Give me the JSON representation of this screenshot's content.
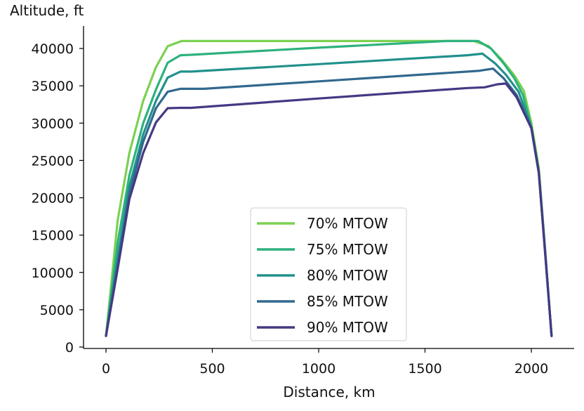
{
  "chart_data": {
    "type": "line",
    "xlabel": "Distance, km",
    "ylabel": "Altitude, ft",
    "xlim": [
      -100,
      2200
    ],
    "ylim": [
      0,
      43000
    ],
    "xticks": [
      0,
      500,
      1000,
      1500,
      2000
    ],
    "yticks": [
      0,
      5000,
      10000,
      15000,
      20000,
      25000,
      30000,
      35000,
      40000
    ],
    "grid": false,
    "legend_position": "lower-center",
    "series": [
      {
        "name": "70% MTOW",
        "color": "#7ad151",
        "points": [
          [
            0,
            1500
          ],
          [
            55,
            17000
          ],
          [
            110,
            26000
          ],
          [
            175,
            33000
          ],
          [
            235,
            37500
          ],
          [
            290,
            40300
          ],
          [
            355,
            41000
          ],
          [
            700,
            41000
          ],
          [
            1100,
            41000
          ],
          [
            1500,
            41000
          ],
          [
            1730,
            41000
          ],
          [
            1800,
            40300
          ],
          [
            1860,
            38500
          ],
          [
            1920,
            36400
          ],
          [
            1965,
            34300
          ],
          [
            2000,
            30000
          ],
          [
            2035,
            24000
          ],
          [
            2065,
            13000
          ],
          [
            2095,
            1500
          ]
        ]
      },
      {
        "name": "75% MTOW",
        "color": "#2db27d",
        "points": [
          [
            0,
            1500
          ],
          [
            55,
            14000
          ],
          [
            110,
            23000
          ],
          [
            175,
            30000
          ],
          [
            235,
            34500
          ],
          [
            290,
            38100
          ],
          [
            350,
            39100
          ],
          [
            400,
            39150
          ],
          [
            1000,
            40100
          ],
          [
            1600,
            41000
          ],
          [
            1750,
            41000
          ],
          [
            1810,
            40000
          ],
          [
            1870,
            38000
          ],
          [
            1920,
            36000
          ],
          [
            1960,
            33800
          ],
          [
            2000,
            29500
          ],
          [
            2035,
            23500
          ],
          [
            2065,
            12800
          ],
          [
            2095,
            1500
          ]
        ]
      },
      {
        "name": "80% MTOW",
        "color": "#21918c",
        "points": [
          [
            0,
            1500
          ],
          [
            55,
            12000
          ],
          [
            110,
            21500
          ],
          [
            175,
            28500
          ],
          [
            235,
            33000
          ],
          [
            290,
            36100
          ],
          [
            350,
            36900
          ],
          [
            400,
            36900
          ],
          [
            1000,
            37900
          ],
          [
            1700,
            39100
          ],
          [
            1770,
            39300
          ],
          [
            1830,
            38000
          ],
          [
            1880,
            36500
          ],
          [
            1940,
            34200
          ],
          [
            2000,
            29500
          ],
          [
            2035,
            23500
          ],
          [
            2065,
            12700
          ],
          [
            2095,
            1500
          ]
        ]
      },
      {
        "name": "85% MTOW",
        "color": "#31688e",
        "points": [
          [
            0,
            1500
          ],
          [
            55,
            11000
          ],
          [
            110,
            20500
          ],
          [
            175,
            27500
          ],
          [
            235,
            32000
          ],
          [
            290,
            34200
          ],
          [
            350,
            34600
          ],
          [
            460,
            34600
          ],
          [
            1000,
            35600
          ],
          [
            1750,
            37000
          ],
          [
            1820,
            37300
          ],
          [
            1870,
            36000
          ],
          [
            1930,
            33800
          ],
          [
            2000,
            29400
          ],
          [
            2035,
            23400
          ],
          [
            2065,
            12600
          ],
          [
            2095,
            1500
          ]
        ]
      },
      {
        "name": "90% MTOW",
        "color": "#443983",
        "points": [
          [
            0,
            1500
          ],
          [
            55,
            10500
          ],
          [
            110,
            19800
          ],
          [
            175,
            26000
          ],
          [
            235,
            30100
          ],
          [
            290,
            32000
          ],
          [
            350,
            32050
          ],
          [
            400,
            32050
          ],
          [
            1000,
            33300
          ],
          [
            1700,
            34700
          ],
          [
            1780,
            34800
          ],
          [
            1840,
            35200
          ],
          [
            1880,
            35300
          ],
          [
            1930,
            33500
          ],
          [
            2000,
            29300
          ],
          [
            2035,
            23300
          ],
          [
            2065,
            12500
          ],
          [
            2095,
            1500
          ]
        ]
      }
    ]
  }
}
